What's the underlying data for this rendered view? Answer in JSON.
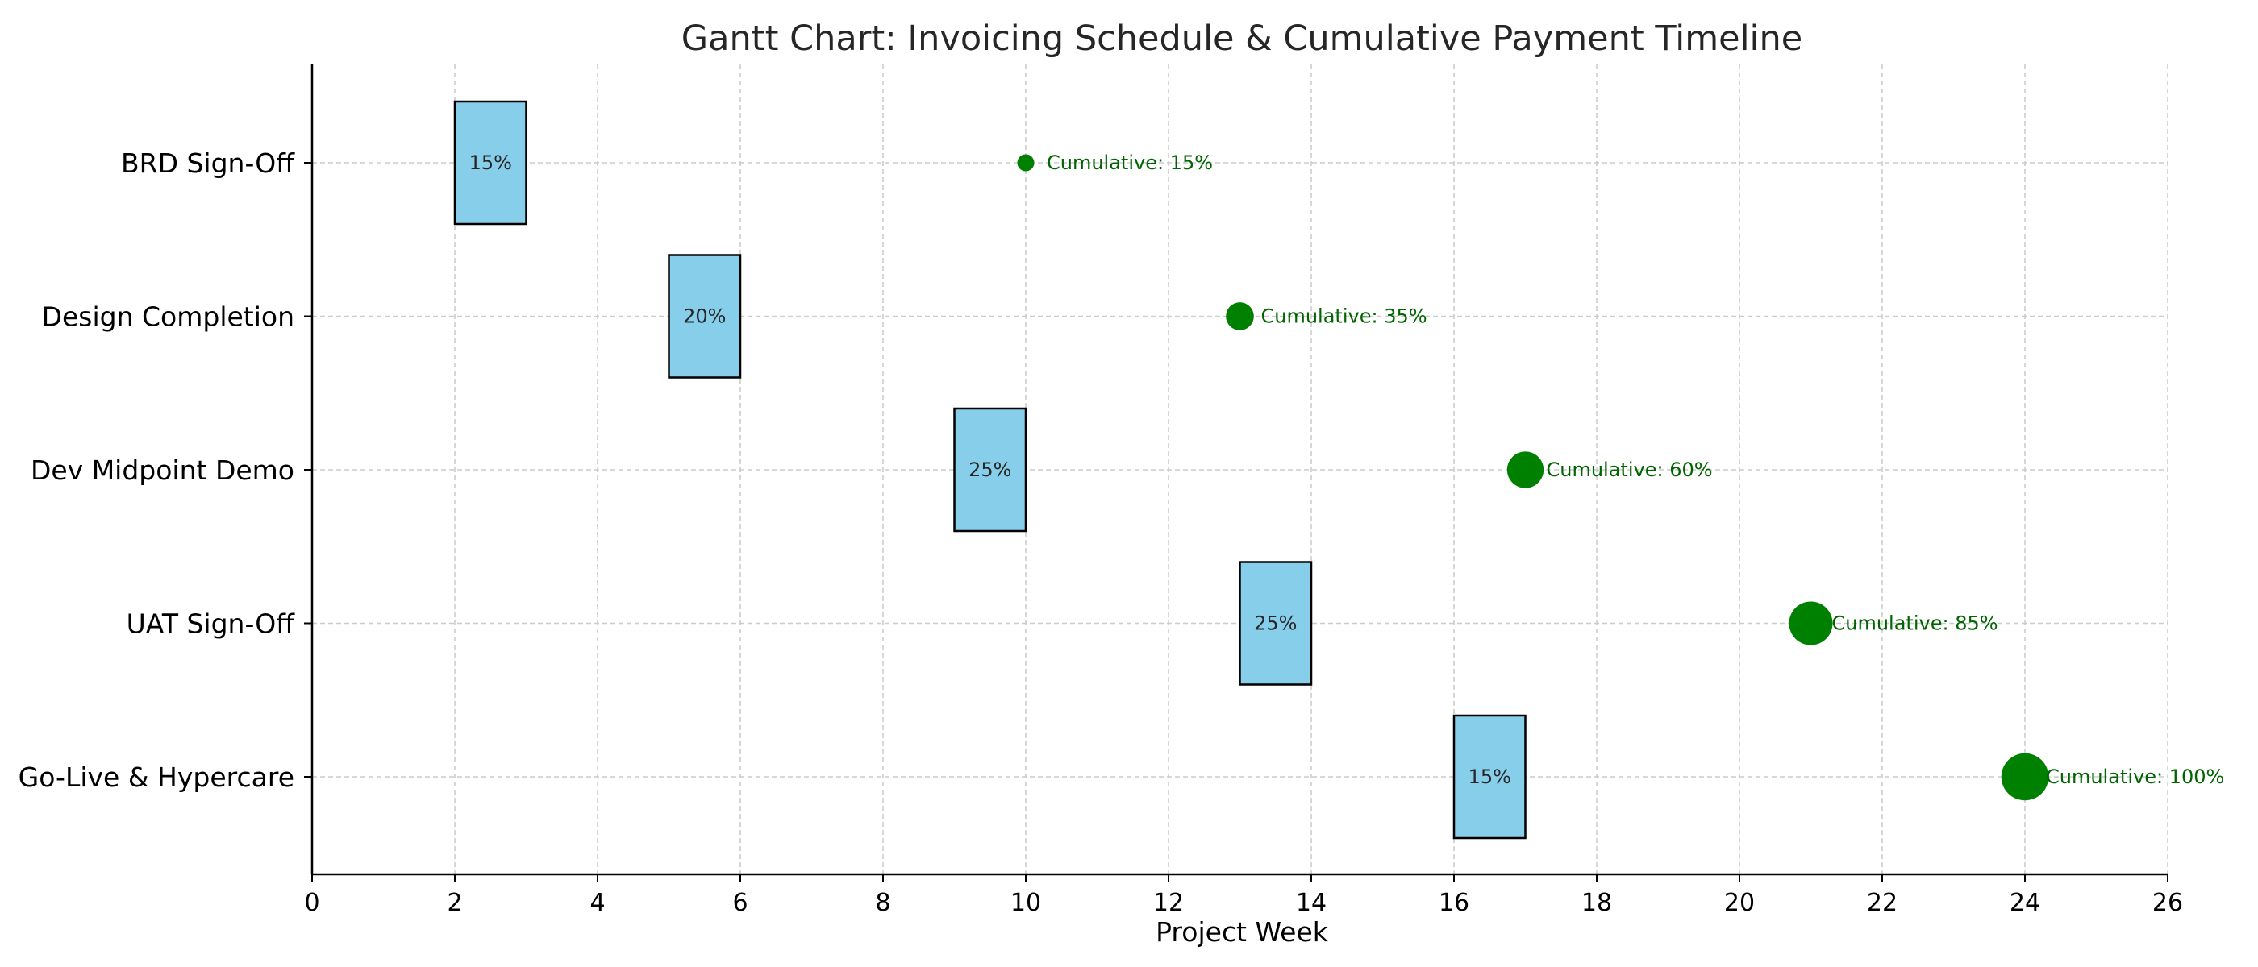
{
  "chart_data": {
    "type": "gantt",
    "title": "Gantt Chart: Invoicing Schedule & Cumulative Payment Timeline",
    "xlabel": "Project Week",
    "ylabel": "",
    "xlim": [
      0,
      26
    ],
    "xticks": [
      "0",
      "2",
      "4",
      "6",
      "8",
      "10",
      "12",
      "14",
      "16",
      "18",
      "20",
      "22",
      "24",
      "26"
    ],
    "grid": true,
    "bar_color": "#87CEEB",
    "bar_edge_color": "#000000",
    "bubble_color": "#008000",
    "label_color": "#006400",
    "milestones": [
      {
        "name": "BRD Sign-Off",
        "start": 2,
        "duration": 1,
        "percent": 15,
        "bar_label": "15%",
        "payment_week": 10,
        "cumulative": 15,
        "cumulative_label": "Cumulative: 15%"
      },
      {
        "name": "Design Completion",
        "start": 5,
        "duration": 1,
        "percent": 20,
        "bar_label": "20%",
        "payment_week": 13,
        "cumulative": 35,
        "cumulative_label": "Cumulative: 35%"
      },
      {
        "name": "Dev Midpoint Demo",
        "start": 9,
        "duration": 1,
        "percent": 25,
        "bar_label": "25%",
        "payment_week": 17,
        "cumulative": 60,
        "cumulative_label": "Cumulative: 60%"
      },
      {
        "name": "UAT Sign-Off",
        "start": 13,
        "duration": 1,
        "percent": 25,
        "bar_label": "25%",
        "payment_week": 21,
        "cumulative": 85,
        "cumulative_label": "Cumulative: 85%"
      },
      {
        "name": "Go-Live & Hypercare",
        "start": 16,
        "duration": 1,
        "percent": 15,
        "bar_label": "15%",
        "payment_week": 24,
        "cumulative": 100,
        "cumulative_label": "Cumulative: 100%"
      }
    ]
  }
}
